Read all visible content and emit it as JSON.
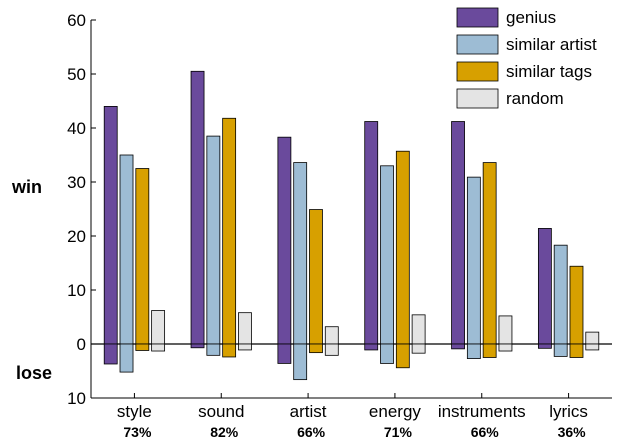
{
  "chart_data": {
    "type": "bar",
    "categories": [
      "style",
      "sound",
      "artist",
      "energy",
      "instruments",
      "lyrics"
    ],
    "category_percentages": [
      "73%",
      "82%",
      "66%",
      "71%",
      "66%",
      "36%"
    ],
    "y_labels": {
      "win": "win",
      "lose": "lose"
    },
    "yticks": [
      {
        "value": 60,
        "label": "60"
      },
      {
        "value": 50,
        "label": "50"
      },
      {
        "value": 40,
        "label": "40"
      },
      {
        "value": 30,
        "label": "30"
      },
      {
        "value": 20,
        "label": "20"
      },
      {
        "value": 10,
        "label": "10"
      },
      {
        "value": 0,
        "label": "0"
      },
      {
        "value": -10,
        "label": "10"
      }
    ],
    "ylim": [
      -10,
      60
    ],
    "legend_position": "top-right",
    "series": [
      {
        "name": "genius",
        "color": "#6a4a9c",
        "win": [
          44,
          50.5,
          38.3,
          41.2,
          41.2,
          21.4
        ],
        "lose": [
          -3.7,
          -0.7,
          -3.6,
          -1.1,
          -0.9,
          -0.8
        ]
      },
      {
        "name": "similar artist",
        "color": "#9dbcd4",
        "win": [
          35,
          38.5,
          33.6,
          33,
          30.9,
          18.3
        ],
        "lose": [
          -5.2,
          -2.1,
          -6.6,
          -3.6,
          -2.7,
          -2.3
        ]
      },
      {
        "name": "similar tags",
        "color": "#d7a000",
        "win": [
          32.5,
          41.8,
          24.9,
          35.7,
          33.6,
          14.4
        ],
        "lose": [
          -1.2,
          -2.4,
          -1.6,
          -4.4,
          -2.5,
          -2.5
        ]
      },
      {
        "name": "random",
        "color": "#e4e4e4",
        "win": [
          6.2,
          5.8,
          3.2,
          5.4,
          5.2,
          2.2
        ],
        "lose": [
          -1.3,
          -1.1,
          -2.1,
          -1.7,
          -1.3,
          -1.1
        ]
      }
    ]
  }
}
